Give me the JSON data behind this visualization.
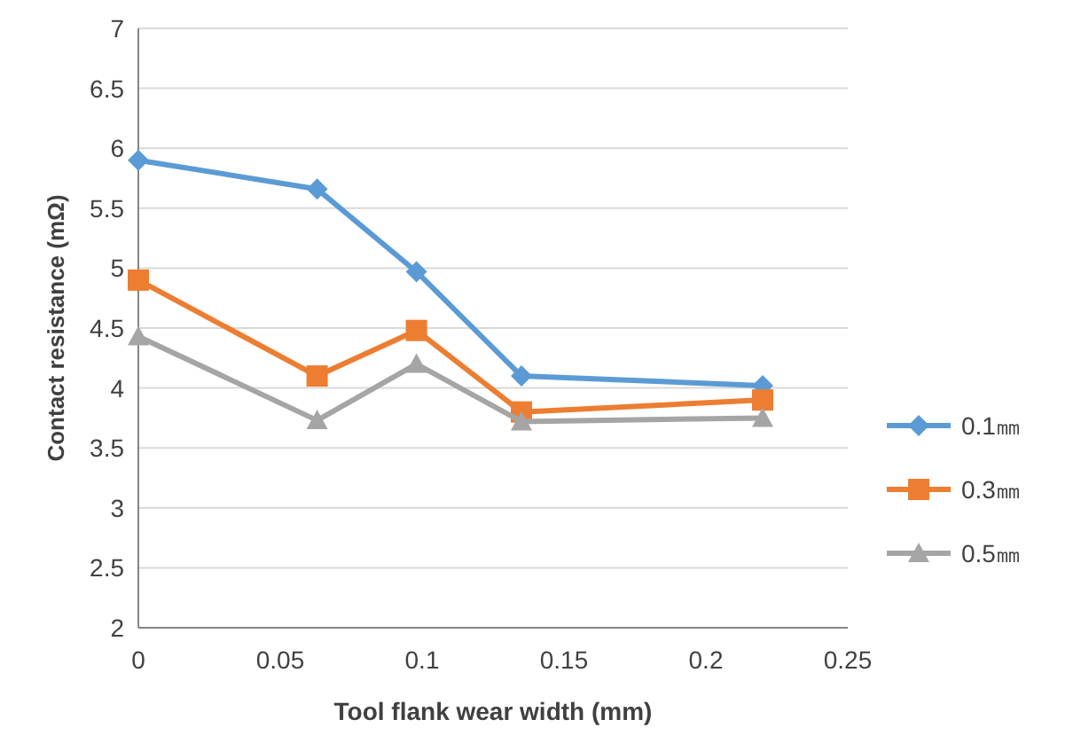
{
  "chart_data": {
    "type": "line",
    "xlabel": "Tool flank wear width (mm)",
    "ylabel": "Contact resistance (mΩ)",
    "x": [
      0,
      0.063,
      0.098,
      0.135,
      0.22
    ],
    "series": [
      {
        "name": "0.1㎜",
        "color": "#5b9bd5",
        "marker": "diamond",
        "values": [
          5.9,
          5.66,
          4.97,
          4.1,
          4.02
        ]
      },
      {
        "name": "0.3㎜",
        "color": "#ed7d31",
        "marker": "square",
        "values": [
          4.9,
          4.1,
          4.48,
          3.8,
          3.9
        ]
      },
      {
        "name": "0.5㎜",
        "color": "#a5a5a5",
        "marker": "triangle",
        "values": [
          4.43,
          3.73,
          4.2,
          3.72,
          3.75
        ]
      }
    ],
    "xlim": [
      0,
      0.25
    ],
    "xticks": [
      0,
      0.05,
      0.1,
      0.15,
      0.2,
      0.25
    ],
    "ylim": [
      2,
      7
    ],
    "yticks": [
      2,
      2.5,
      3,
      3.5,
      4,
      4.5,
      5,
      5.5,
      6,
      6.5,
      7
    ],
    "grid": "y",
    "legend": "right",
    "line_style": "solid"
  }
}
